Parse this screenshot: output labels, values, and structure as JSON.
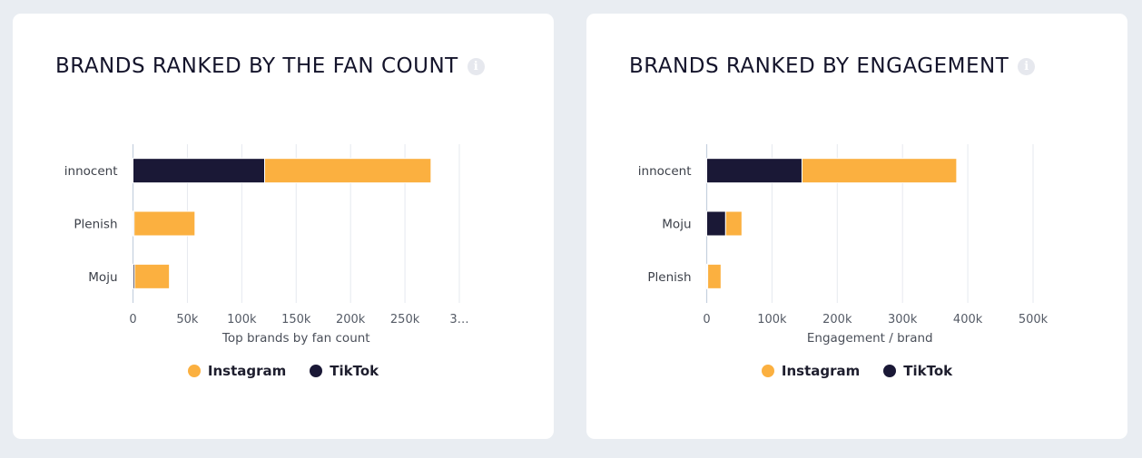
{
  "chart_data": [
    {
      "type": "bar",
      "orientation": "horizontal",
      "stacked": true,
      "title": "BRANDS RANKED BY THE FAN COUNT",
      "categories": [
        "innocent",
        "Plenish",
        "Moju"
      ],
      "series": [
        {
          "name": "TikTok",
          "color": "#1a1836",
          "values": [
            121000,
            1000,
            1500
          ]
        },
        {
          "name": "Instagram",
          "color": "#fbb040",
          "values": [
            153000,
            56000,
            32000
          ]
        }
      ],
      "xlabel": "Top brands by fan count",
      "ylabel": "",
      "xticks": [
        "0",
        "50k",
        "100k",
        "150k",
        "200k",
        "250k",
        "3…"
      ],
      "xlim": [
        0,
        300000
      ],
      "grid": true,
      "legend": "bottom-center"
    },
    {
      "type": "bar",
      "orientation": "horizontal",
      "stacked": true,
      "title": "BRANDS RANKED BY ENGAGEMENT",
      "categories": [
        "innocent",
        "Moju",
        "Plenish"
      ],
      "series": [
        {
          "name": "TikTok",
          "color": "#1a1836",
          "values": [
            146000,
            29000,
            1500
          ]
        },
        {
          "name": "Instagram",
          "color": "#fbb040",
          "values": [
            237000,
            25000,
            20500
          ]
        }
      ],
      "xlabel": "Engagement / brand",
      "ylabel": "",
      "xticks": [
        "0",
        "100k",
        "200k",
        "300k",
        "400k",
        "500k"
      ],
      "xlim": [
        0,
        500000
      ],
      "grid": true,
      "legend": "bottom-center"
    }
  ],
  "info_icon": "info-icon",
  "legend_items": [
    {
      "name": "Instagram",
      "color": "#fbb040"
    },
    {
      "name": "TikTok",
      "color": "#1a1836"
    }
  ]
}
